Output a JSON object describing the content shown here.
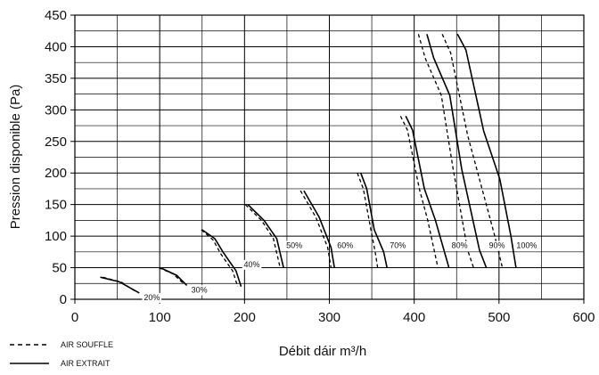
{
  "chart_data": {
    "type": "line",
    "xlabel": "Débit dáir m³/h",
    "ylabel": "Pression disponible (Pa)",
    "xlim": [
      0,
      600
    ],
    "ylim": [
      0,
      450
    ],
    "x_ticks": [
      0,
      100,
      200,
      300,
      400,
      500,
      600
    ],
    "y_ticks": [
      0,
      50,
      100,
      150,
      200,
      250,
      300,
      350,
      400,
      450
    ],
    "grid": true,
    "legend_position": "bottom-left",
    "series_styles": [
      {
        "name": "AIR SOUFFLE",
        "style": "dashed"
      },
      {
        "name": "AIR EXTRAIT",
        "style": "solid"
      }
    ],
    "curves": [
      {
        "speed": "20%",
        "souffle": [
          [
            33,
            35
          ],
          [
            55,
            27
          ],
          [
            72,
            12
          ]
        ],
        "extrait": [
          [
            30,
            35
          ],
          [
            52,
            28
          ],
          [
            76,
            10
          ]
        ]
      },
      {
        "speed": "30%",
        "souffle": [
          [
            99,
            50
          ],
          [
            116,
            40
          ],
          [
            128,
            25
          ]
        ],
        "extrait": [
          [
            101,
            50
          ],
          [
            120,
            38
          ],
          [
            132,
            22
          ]
        ]
      },
      {
        "speed": "40%",
        "souffle": [
          [
            149,
            110
          ],
          [
            163,
            94
          ],
          [
            172,
            72
          ],
          [
            186,
            45
          ],
          [
            192,
            20
          ]
        ],
        "extrait": [
          [
            150,
            110
          ],
          [
            165,
            96
          ],
          [
            175,
            74
          ],
          [
            190,
            45
          ],
          [
            196,
            20
          ]
        ]
      },
      {
        "speed": "50%",
        "souffle": [
          [
            201,
            150
          ],
          [
            220,
            125
          ],
          [
            234,
            96
          ],
          [
            242,
            50
          ]
        ],
        "extrait": [
          [
            204,
            150
          ],
          [
            223,
            125
          ],
          [
            238,
            96
          ],
          [
            246,
            50
          ]
        ]
      },
      {
        "speed": "60%",
        "souffle": [
          [
            266,
            172
          ],
          [
            284,
            130
          ],
          [
            298,
            82
          ],
          [
            302,
            50
          ]
        ],
        "extrait": [
          [
            270,
            172
          ],
          [
            288,
            130
          ],
          [
            302,
            82
          ],
          [
            306,
            50
          ]
        ]
      },
      {
        "speed": "70%",
        "souffle": [
          [
            333,
            200
          ],
          [
            340,
            175
          ],
          [
            349,
            110
          ],
          [
            354,
            75
          ],
          [
            357,
            50
          ]
        ],
        "extrait": [
          [
            337,
            200
          ],
          [
            344,
            175
          ],
          [
            353,
            110
          ],
          [
            364,
            75
          ],
          [
            368,
            50
          ]
        ]
      },
      {
        "speed": "80%",
        "souffle": [
          [
            384,
            290
          ],
          [
            392,
            268
          ],
          [
            406,
            175
          ],
          [
            416,
            125
          ],
          [
            428,
            50
          ]
        ],
        "extrait": [
          [
            390,
            290
          ],
          [
            398,
            268
          ],
          [
            412,
            175
          ],
          [
            425,
            125
          ],
          [
            441,
            50
          ]
        ]
      },
      {
        "speed": "90%",
        "souffle": [
          [
            405,
            420
          ],
          [
            413,
            382
          ],
          [
            432,
            323
          ],
          [
            446,
            206
          ],
          [
            463,
            78
          ],
          [
            470,
            50
          ]
        ],
        "extrait": [
          [
            415,
            420
          ],
          [
            423,
            382
          ],
          [
            442,
            323
          ],
          [
            456,
            206
          ],
          [
            477,
            78
          ],
          [
            485,
            50
          ]
        ]
      },
      {
        "speed": "100%",
        "souffle": [
          [
            433,
            420
          ],
          [
            443,
            390
          ],
          [
            463,
            260
          ],
          [
            478,
            185
          ],
          [
            495,
            100
          ],
          [
            504,
            50
          ]
        ],
        "extrait": [
          [
            451,
            420
          ],
          [
            461,
            395
          ],
          [
            482,
            266
          ],
          [
            501,
            190
          ],
          [
            514,
            100
          ],
          [
            520,
            50
          ]
        ]
      }
    ]
  }
}
